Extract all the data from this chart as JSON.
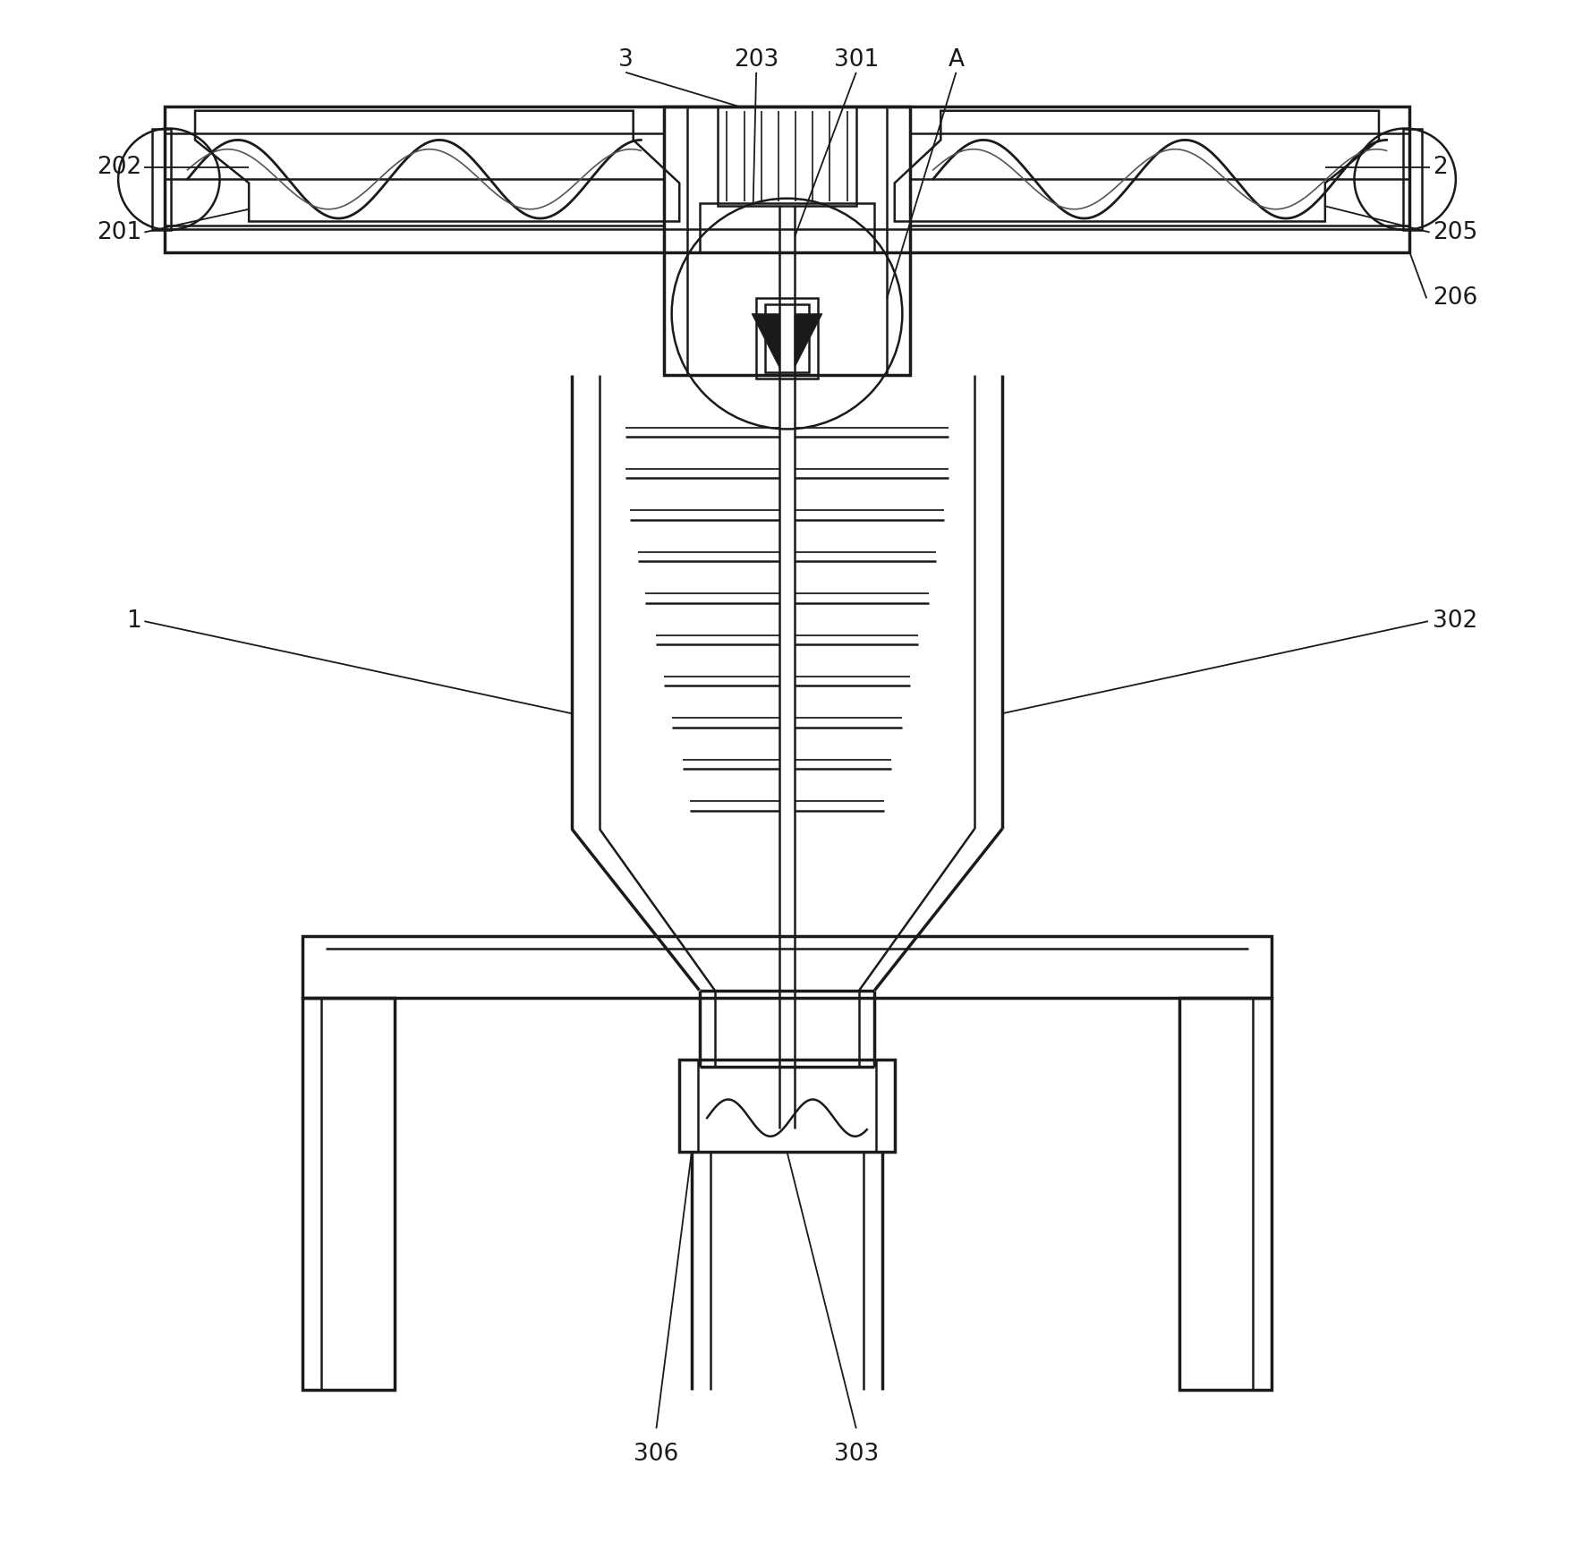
{
  "background_color": "#ffffff",
  "line_color": "#1a1a1a",
  "lw": 1.8,
  "tlw": 2.5,
  "fig_width": 17.59,
  "fig_height": 17.32,
  "annot_lw": 1.3,
  "annot_fs": 19
}
